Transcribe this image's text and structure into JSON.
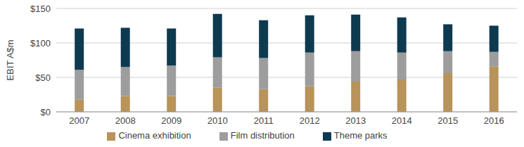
{
  "chart_data": {
    "type": "bar",
    "y_label": "EBIT A$m",
    "categories": [
      "2007",
      "2008",
      "2009",
      "2010",
      "2011",
      "2012",
      "2013",
      "2014",
      "2015",
      "2016"
    ],
    "series": [
      {
        "name": "Cinema exhibition",
        "color": "#b8935a",
        "values": [
          18,
          23,
          23,
          35,
          33,
          37,
          44,
          47,
          56,
          66
        ]
      },
      {
        "name": "Film distribution",
        "color": "#9d9d9d",
        "values": [
          43,
          42,
          44,
          44,
          45,
          49,
          44,
          39,
          32,
          21
        ]
      },
      {
        "name": "Theme parks",
        "color": "#0e3a50",
        "values": [
          60,
          57,
          54,
          63,
          55,
          54,
          53,
          51,
          39,
          38
        ]
      }
    ],
    "ylim": [
      0,
      150
    ],
    "yticks": [
      {
        "value": 0,
        "label": "$0"
      },
      {
        "value": 50,
        "label": "$50"
      },
      {
        "value": 100,
        "label": "$100"
      },
      {
        "value": 150,
        "label": "$150"
      }
    ],
    "grid": true,
    "stacked": true,
    "legend": "bottom"
  }
}
